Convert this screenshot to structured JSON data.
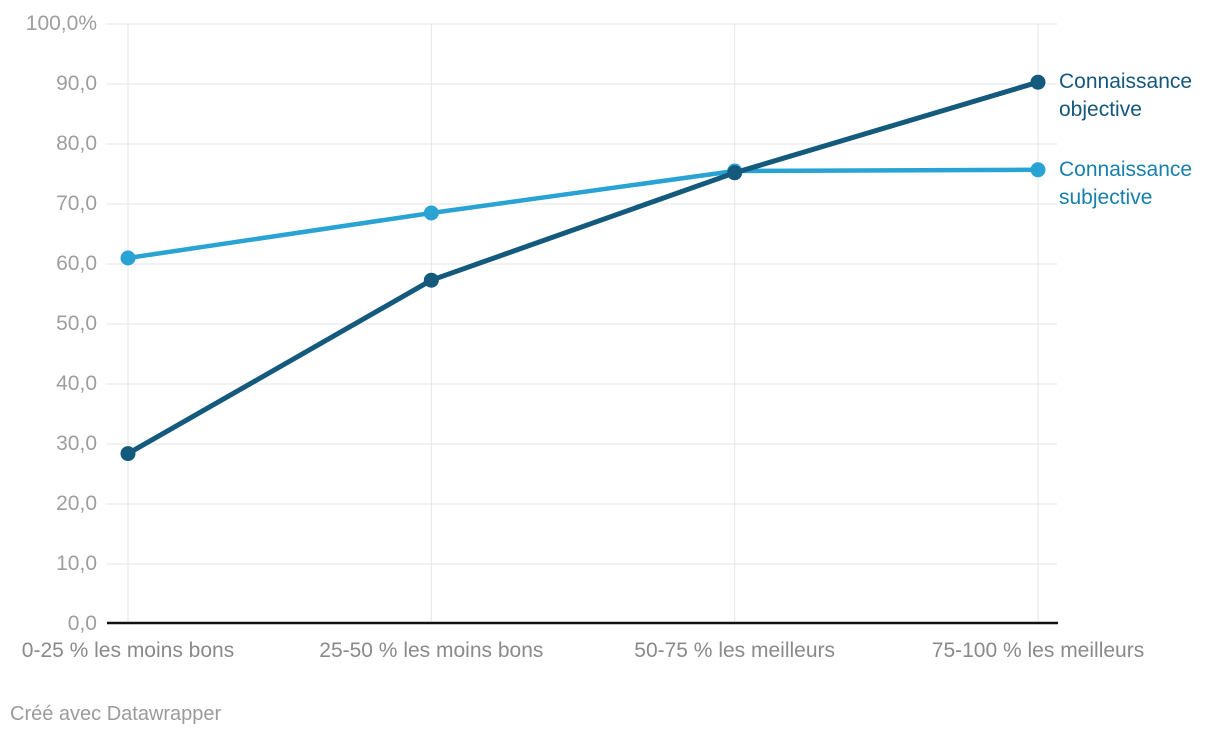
{
  "chart_data": {
    "type": "line",
    "categories": [
      "0-25 % les moins bons",
      "25-50 % les moins bons",
      "50-75 % les meilleurs",
      "75-100 % les meilleurs"
    ],
    "series": [
      {
        "name": "Connaissance objective",
        "values": [
          28.4,
          57.3,
          75.2,
          90.3
        ],
        "color": "#135a7c",
        "label_color": "#14577d"
      },
      {
        "name": "Connaissance subjective",
        "values": [
          61.0,
          68.5,
          75.5,
          75.7
        ],
        "color": "#29a2d4",
        "label_color": "#1780ad"
      }
    ],
    "title": "",
    "xlabel": "",
    "ylabel": "",
    "ylim": [
      0,
      100
    ],
    "ytick_step": 10,
    "ytick_labels_top_to_bottom": [
      "100,0%",
      "90,0",
      "80,0",
      "70,0",
      "60,0",
      "50,0",
      "40,0",
      "30,0",
      "20,0",
      "10,0",
      "0,0"
    ],
    "grid": true,
    "legend_position": "right-of-last-point"
  },
  "theme": {
    "background": "#ffffff",
    "gridline_color": "#e6e6e6",
    "baseline_color": "#111111",
    "ytick_color": "#9e9e9e",
    "xtick_color": "#8a8a8a",
    "credit_color": "#9b9b9b"
  },
  "footer": {
    "credit": "Créé avec Datawrapper"
  }
}
